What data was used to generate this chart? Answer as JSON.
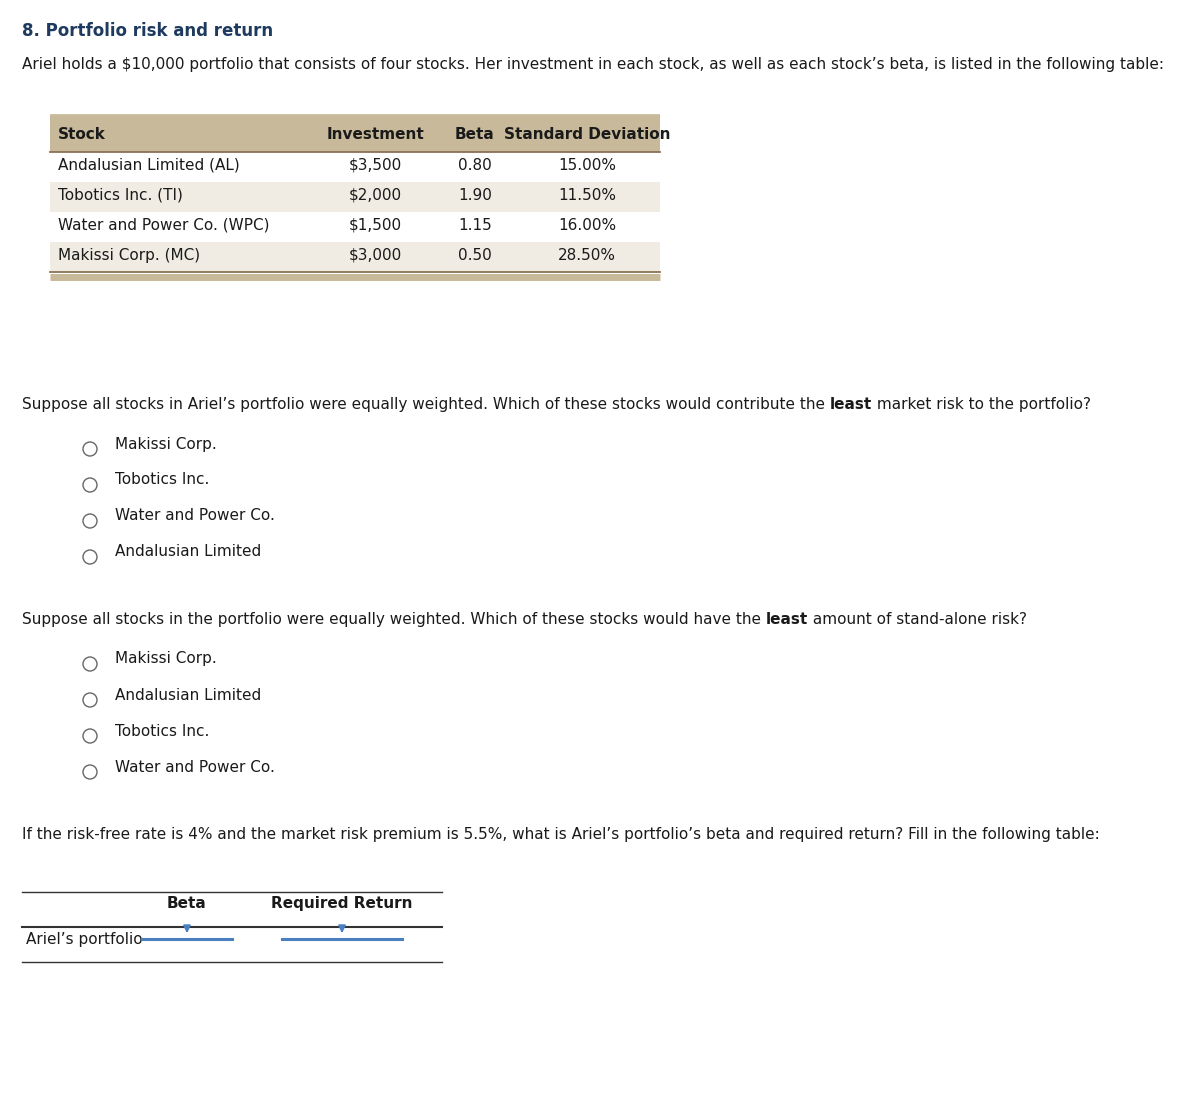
{
  "title": "8. Portfolio risk and return",
  "intro_text": "Ariel holds a $10,000 portfolio that consists of four stocks. Her investment in each stock, as well as each stock’s beta, is listed in the following table:",
  "table_headers": [
    "Stock",
    "Investment",
    "Beta",
    "Standard Deviation"
  ],
  "table_rows": [
    [
      "Andalusian Limited (AL)",
      "$3,500",
      "0.80",
      "15.00%"
    ],
    [
      "Tobotics Inc. (TI)",
      "$2,000",
      "1.90",
      "11.50%"
    ],
    [
      "Water and Power Co. (WPC)",
      "$1,500",
      "1.15",
      "16.00%"
    ],
    [
      "Makissi Corp. (MC)",
      "$3,000",
      "0.50",
      "28.50%"
    ]
  ],
  "q1_pre": "Suppose all stocks in Ariel’s portfolio were equally weighted. Which of these stocks would contribute the ",
  "q1_bold": "least",
  "q1_post": " market risk to the portfolio?",
  "q1_options": [
    "Makissi Corp.",
    "Tobotics Inc.",
    "Water and Power Co.",
    "Andalusian Limited"
  ],
  "q2_pre": "Suppose all stocks in the portfolio were equally weighted. Which of these stocks would have the ",
  "q2_bold": "least",
  "q2_post": " amount of stand-alone risk?",
  "q2_options": [
    "Makissi Corp.",
    "Andalusian Limited",
    "Tobotics Inc.",
    "Water and Power Co."
  ],
  "q3_text": "If the risk-free rate is 4% and the market risk premium is 5.5%, what is Ariel’s portfolio’s beta and required return? Fill in the following table:",
  "q3_row_label": "Ariel’s portfolio",
  "q3_col1": "Beta",
  "q3_col2": "Required Return",
  "title_color": "#1e3a5f",
  "text_color": "#1a1a1a",
  "header_bg_color": "#c8b99a",
  "row_alt_color": "#f0ece3",
  "row_color": "#ffffff",
  "table_line_color": "#8b7355",
  "dropdown_color": "#4a7fc1",
  "font_size_title": 12,
  "font_size_text": 11,
  "font_size_table": 11,
  "bg_color": "#ffffff"
}
